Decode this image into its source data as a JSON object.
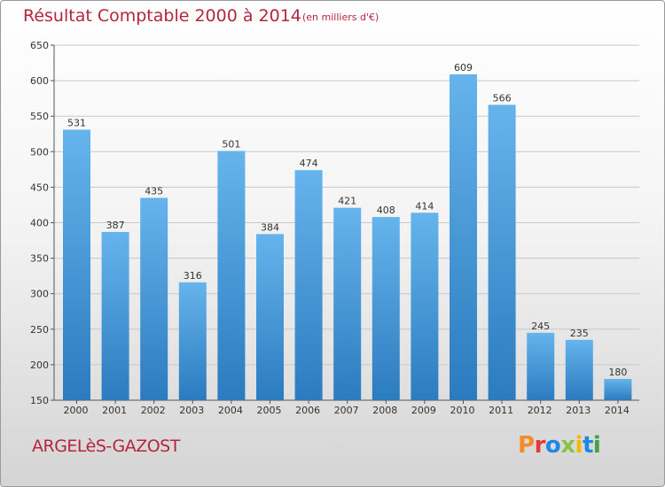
{
  "header": {
    "title": "Résultat Comptable 2000 à 2014",
    "unit": "(en milliers d'€)"
  },
  "footer": {
    "town": "ARGELèS-GAZOST",
    "logo": "Proxiti",
    "logo_colors": [
      "#f28c28",
      "#e53935",
      "#1e88e5",
      "#8bc34a",
      "#f6b800",
      "#1e88e5",
      "#43a047"
    ]
  },
  "colors": {
    "bar_top": "#66b4ec",
    "bar_bottom": "#2b7bbf",
    "grid": "#c8c8c8",
    "title": "#b5253e"
  },
  "chart_data": {
    "type": "bar",
    "categories": [
      "2000",
      "2001",
      "2002",
      "2003",
      "2004",
      "2005",
      "2006",
      "2007",
      "2008",
      "2009",
      "2010",
      "2011",
      "2012",
      "2013",
      "2014"
    ],
    "values": [
      531,
      387,
      435,
      316,
      501,
      384,
      474,
      421,
      408,
      414,
      609,
      566,
      245,
      235,
      180
    ],
    "ylim": [
      150,
      650
    ],
    "yticks": [
      150,
      200,
      250,
      300,
      350,
      400,
      450,
      500,
      550,
      600,
      650
    ],
    "grid": true,
    "xlabel": "",
    "ylabel": ""
  }
}
